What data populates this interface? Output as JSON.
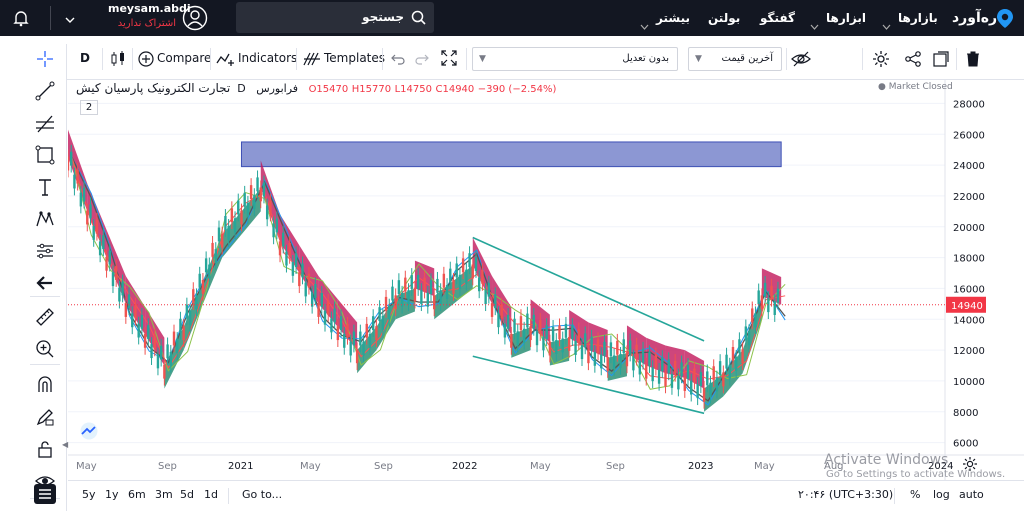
{
  "topbar": {
    "logo": "رەآورد",
    "nav": [
      "بازارها",
      "ابزارها",
      "گفتگو",
      "بولتن",
      "بیشتر"
    ],
    "search_label": "جستجو",
    "user_name": "meysam.abdi",
    "user_status": "اشتراک ندارید"
  },
  "toolbar": {
    "interval": "D",
    "compare": "Compare",
    "indicators": "Indicators",
    "templates": "Templates",
    "adjust_select": "بدون تعدیل",
    "price_select": "آخرین قیمت"
  },
  "legend": {
    "symbol": "تجارت الکترونیک پارسیان کیش",
    "interval": "D",
    "exchange": "فرابورس",
    "open": "O15470",
    "high": "H15770",
    "low": "L14750",
    "close": "C14940",
    "change": "−390 (−2.54%)",
    "collapse_count": "2",
    "market_status": "Market Closed"
  },
  "chart_data": {
    "type": "candlestick",
    "y_ticks": [
      6000,
      8000,
      10000,
      12000,
      14000,
      16000,
      18000,
      20000,
      22000,
      24000,
      26000,
      28000
    ],
    "x_ticks": [
      "May",
      "Sep",
      "2021",
      "May",
      "Sep",
      "2022",
      "May",
      "Sep",
      "2023",
      "May",
      "Aug",
      "2024"
    ],
    "ylim": [
      5000,
      29000
    ],
    "last_price": "14940",
    "colors": {
      "up": "#26a69a",
      "down": "#ef5350",
      "cloud_bull": "#1f8a6e",
      "cloud_bear": "#c2185b",
      "zone": "#3f51b5",
      "trendline": "#26a69a",
      "last_price": "#f23645"
    },
    "zone": {
      "x_from": "2021-01",
      "x_to": "2023-05",
      "y_from": 23900,
      "y_to": 25500
    },
    "trendlines": [
      {
        "from": [
          "2022-01",
          19300
        ],
        "to": [
          "2023-01",
          12600
        ]
      },
      {
        "from": [
          "2022-01",
          11600
        ],
        "to": [
          "2023-01",
          7900
        ]
      }
    ],
    "close_series": [
      [
        "2020-04",
        24500
      ],
      [
        "2020-05",
        21000
      ],
      [
        "2020-06",
        18000
      ],
      [
        "2020-07",
        15000
      ],
      [
        "2020-08",
        13000
      ],
      [
        "2020-09",
        11000
      ],
      [
        "2020-10",
        13500
      ],
      [
        "2020-11",
        16500
      ],
      [
        "2020-12",
        19500
      ],
      [
        "2021-01",
        21000
      ],
      [
        "2021-02",
        22500
      ],
      [
        "2021-03",
        19000
      ],
      [
        "2021-04",
        17000
      ],
      [
        "2021-05",
        15000
      ],
      [
        "2021-06",
        13500
      ],
      [
        "2021-07",
        12000
      ],
      [
        "2021-08",
        13500
      ],
      [
        "2021-09",
        15500
      ],
      [
        "2021-10",
        16000
      ],
      [
        "2021-11",
        15500
      ],
      [
        "2021-12",
        16500
      ],
      [
        "2022-01",
        17500
      ],
      [
        "2022-02",
        15000
      ],
      [
        "2022-03",
        13000
      ],
      [
        "2022-04",
        13500
      ],
      [
        "2022-05",
        12500
      ],
      [
        "2022-06",
        12800
      ],
      [
        "2022-07",
        12000
      ],
      [
        "2022-08",
        11500
      ],
      [
        "2022-09",
        11800
      ],
      [
        "2022-10",
        11000
      ],
      [
        "2022-11",
        10500
      ],
      [
        "2022-12",
        10200
      ],
      [
        "2023-01",
        9500
      ],
      [
        "2023-02",
        10500
      ],
      [
        "2023-03",
        12000
      ],
      [
        "2023-04",
        15500
      ],
      [
        "2023-05",
        14940
      ]
    ]
  },
  "bottombar": {
    "ranges": [
      "5y",
      "1y",
      "6m",
      "3m",
      "5d",
      "1d"
    ],
    "goto": "Go to...",
    "time": "۲۰:۴۶ (UTC+3:30)",
    "percent": "%",
    "log": "log",
    "auto": "auto"
  },
  "overlay": {
    "watermark_line1": "Activate Windows",
    "watermark_line2": "Go to Settings to activate Windows."
  }
}
